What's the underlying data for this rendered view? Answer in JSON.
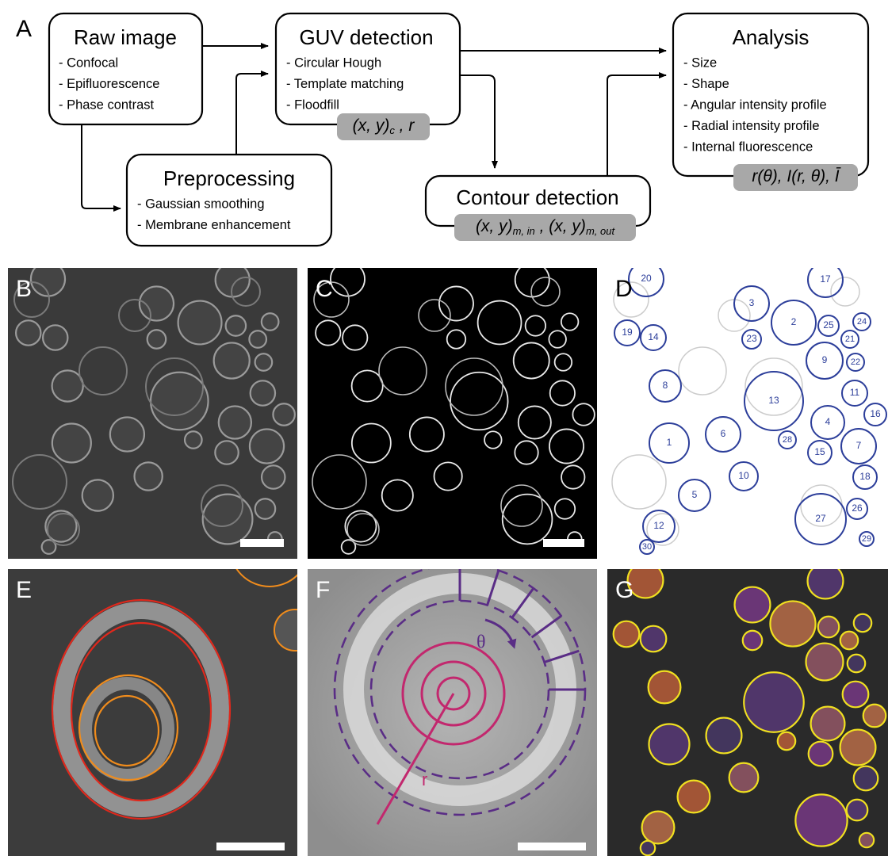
{
  "panel_labels": [
    "A",
    "B",
    "C",
    "D",
    "E",
    "F",
    "G"
  ],
  "nodes": [
    {
      "title": "Raw image",
      "items": [
        "- Confocal",
        "- Epifluorescence",
        "- Phase contrast"
      ]
    },
    {
      "title": "GUV detection",
      "items": [
        "- Circular Hough",
        "- Template matching",
        "- Floodfill"
      ],
      "output": [
        {
          "text": "(x, y)"
        },
        {
          "text": "c",
          "sub": true
        },
        {
          "text": " , r"
        }
      ]
    },
    {
      "title": "Analysis",
      "items": [
        "- Size",
        "- Shape",
        "- Angular intensity profile",
        "- Radial intensity profile",
        "- Internal fluorescence"
      ],
      "output": [
        {
          "text": "r(θ), I(r, θ), Ī"
        }
      ]
    },
    {
      "title": "Preprocessing",
      "items": [
        "- Gaussian smoothing",
        "- Membrane enhancement"
      ]
    },
    {
      "title": "Contour detection",
      "items": [],
      "output": [
        {
          "text": "(x, y)"
        },
        {
          "text": "m, in",
          "sub": true
        },
        {
          "text": " , (x, y)"
        },
        {
          "text": "m, out",
          "sub": true
        }
      ]
    }
  ],
  "panel_d_labels": [
    20,
    17,
    3,
    2,
    25,
    24,
    19,
    14,
    23,
    21,
    9,
    22,
    8,
    13,
    11,
    16,
    4,
    6,
    28,
    1,
    15,
    7,
    10,
    18,
    5,
    26,
    27,
    12,
    29,
    30
  ],
  "panel_f_labels": {
    "angle": "θ",
    "radius": "r"
  }
}
